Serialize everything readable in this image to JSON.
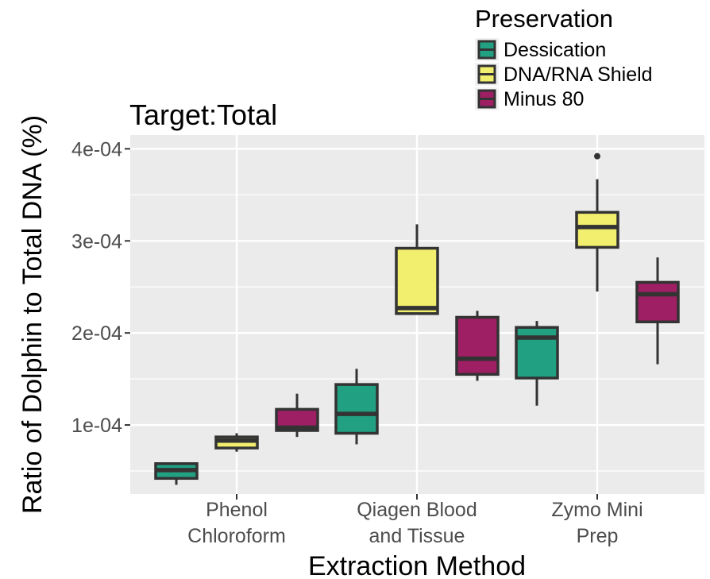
{
  "chart_data": {
    "type": "box",
    "title": "Target:Total",
    "xlabel": "Extraction Method",
    "ylabel": "Ratio of Dolphin to Total DNA (%)",
    "ylim": [
      2.5e-05,
      0.000415
    ],
    "yticks": [
      {
        "value": 0.0001,
        "label": "1e-04"
      },
      {
        "value": 0.0002,
        "label": "2e-04"
      },
      {
        "value": 0.0003,
        "label": "3e-04"
      },
      {
        "value": 0.0004,
        "label": "4e-04"
      }
    ],
    "categories": [
      {
        "key": "phenol",
        "lines": [
          "Phenol",
          "Chloroform"
        ]
      },
      {
        "key": "qiagen",
        "lines": [
          "Qiagen Blood",
          "and Tissue"
        ]
      },
      {
        "key": "zymo",
        "lines": [
          "Zymo Mini",
          "Prep"
        ]
      }
    ],
    "legend": {
      "title": "Preservation",
      "position": "top-right"
    },
    "series": [
      {
        "name": "Dessication",
        "color": "#21a182",
        "boxes": [
          {
            "category": "phenol",
            "min": 3.5e-05,
            "q1": 4.2e-05,
            "median": 5.1e-05,
            "q3": 5.8e-05,
            "max": 5.8e-05,
            "outliers": []
          },
          {
            "category": "qiagen",
            "min": 7.9e-05,
            "q1": 9.1e-05,
            "median": 0.000112,
            "q3": 0.000144,
            "max": 0.000161,
            "outliers": []
          },
          {
            "category": "zymo",
            "min": 0.000121,
            "q1": 0.000151,
            "median": 0.000195,
            "q3": 0.000206,
            "max": 0.000213,
            "outliers": []
          }
        ]
      },
      {
        "name": "DNA/RNA Shield",
        "color": "#f2ee6e",
        "boxes": [
          {
            "category": "phenol",
            "min": 7.1e-05,
            "q1": 7.5e-05,
            "median": 8.3e-05,
            "q3": 8.7e-05,
            "max": 9.1e-05,
            "outliers": []
          },
          {
            "category": "qiagen",
            "min": 0.000221,
            "q1": 0.000221,
            "median": 0.000227,
            "q3": 0.000292,
            "max": 0.000318,
            "outliers": []
          },
          {
            "category": "zymo",
            "min": 0.000245,
            "q1": 0.000293,
            "median": 0.000315,
            "q3": 0.000331,
            "max": 0.000367,
            "outliers": [
              0.000392
            ]
          }
        ]
      },
      {
        "name": "Minus 80",
        "color": "#9e1f63",
        "boxes": [
          {
            "category": "phenol",
            "min": 8.7e-05,
            "q1": 9.4e-05,
            "median": 9.7e-05,
            "q3": 0.000117,
            "max": 0.000134,
            "outliers": []
          },
          {
            "category": "qiagen",
            "min": 0.000148,
            "q1": 0.000155,
            "median": 0.000172,
            "q3": 0.000217,
            "max": 0.000224,
            "outliers": []
          },
          {
            "category": "zymo",
            "min": 0.000166,
            "q1": 0.000212,
            "median": 0.000242,
            "q3": 0.000255,
            "max": 0.000282,
            "outliers": []
          }
        ]
      }
    ],
    "grid": true,
    "panel_color": "#ebebeb",
    "outline_color": "#333333"
  }
}
